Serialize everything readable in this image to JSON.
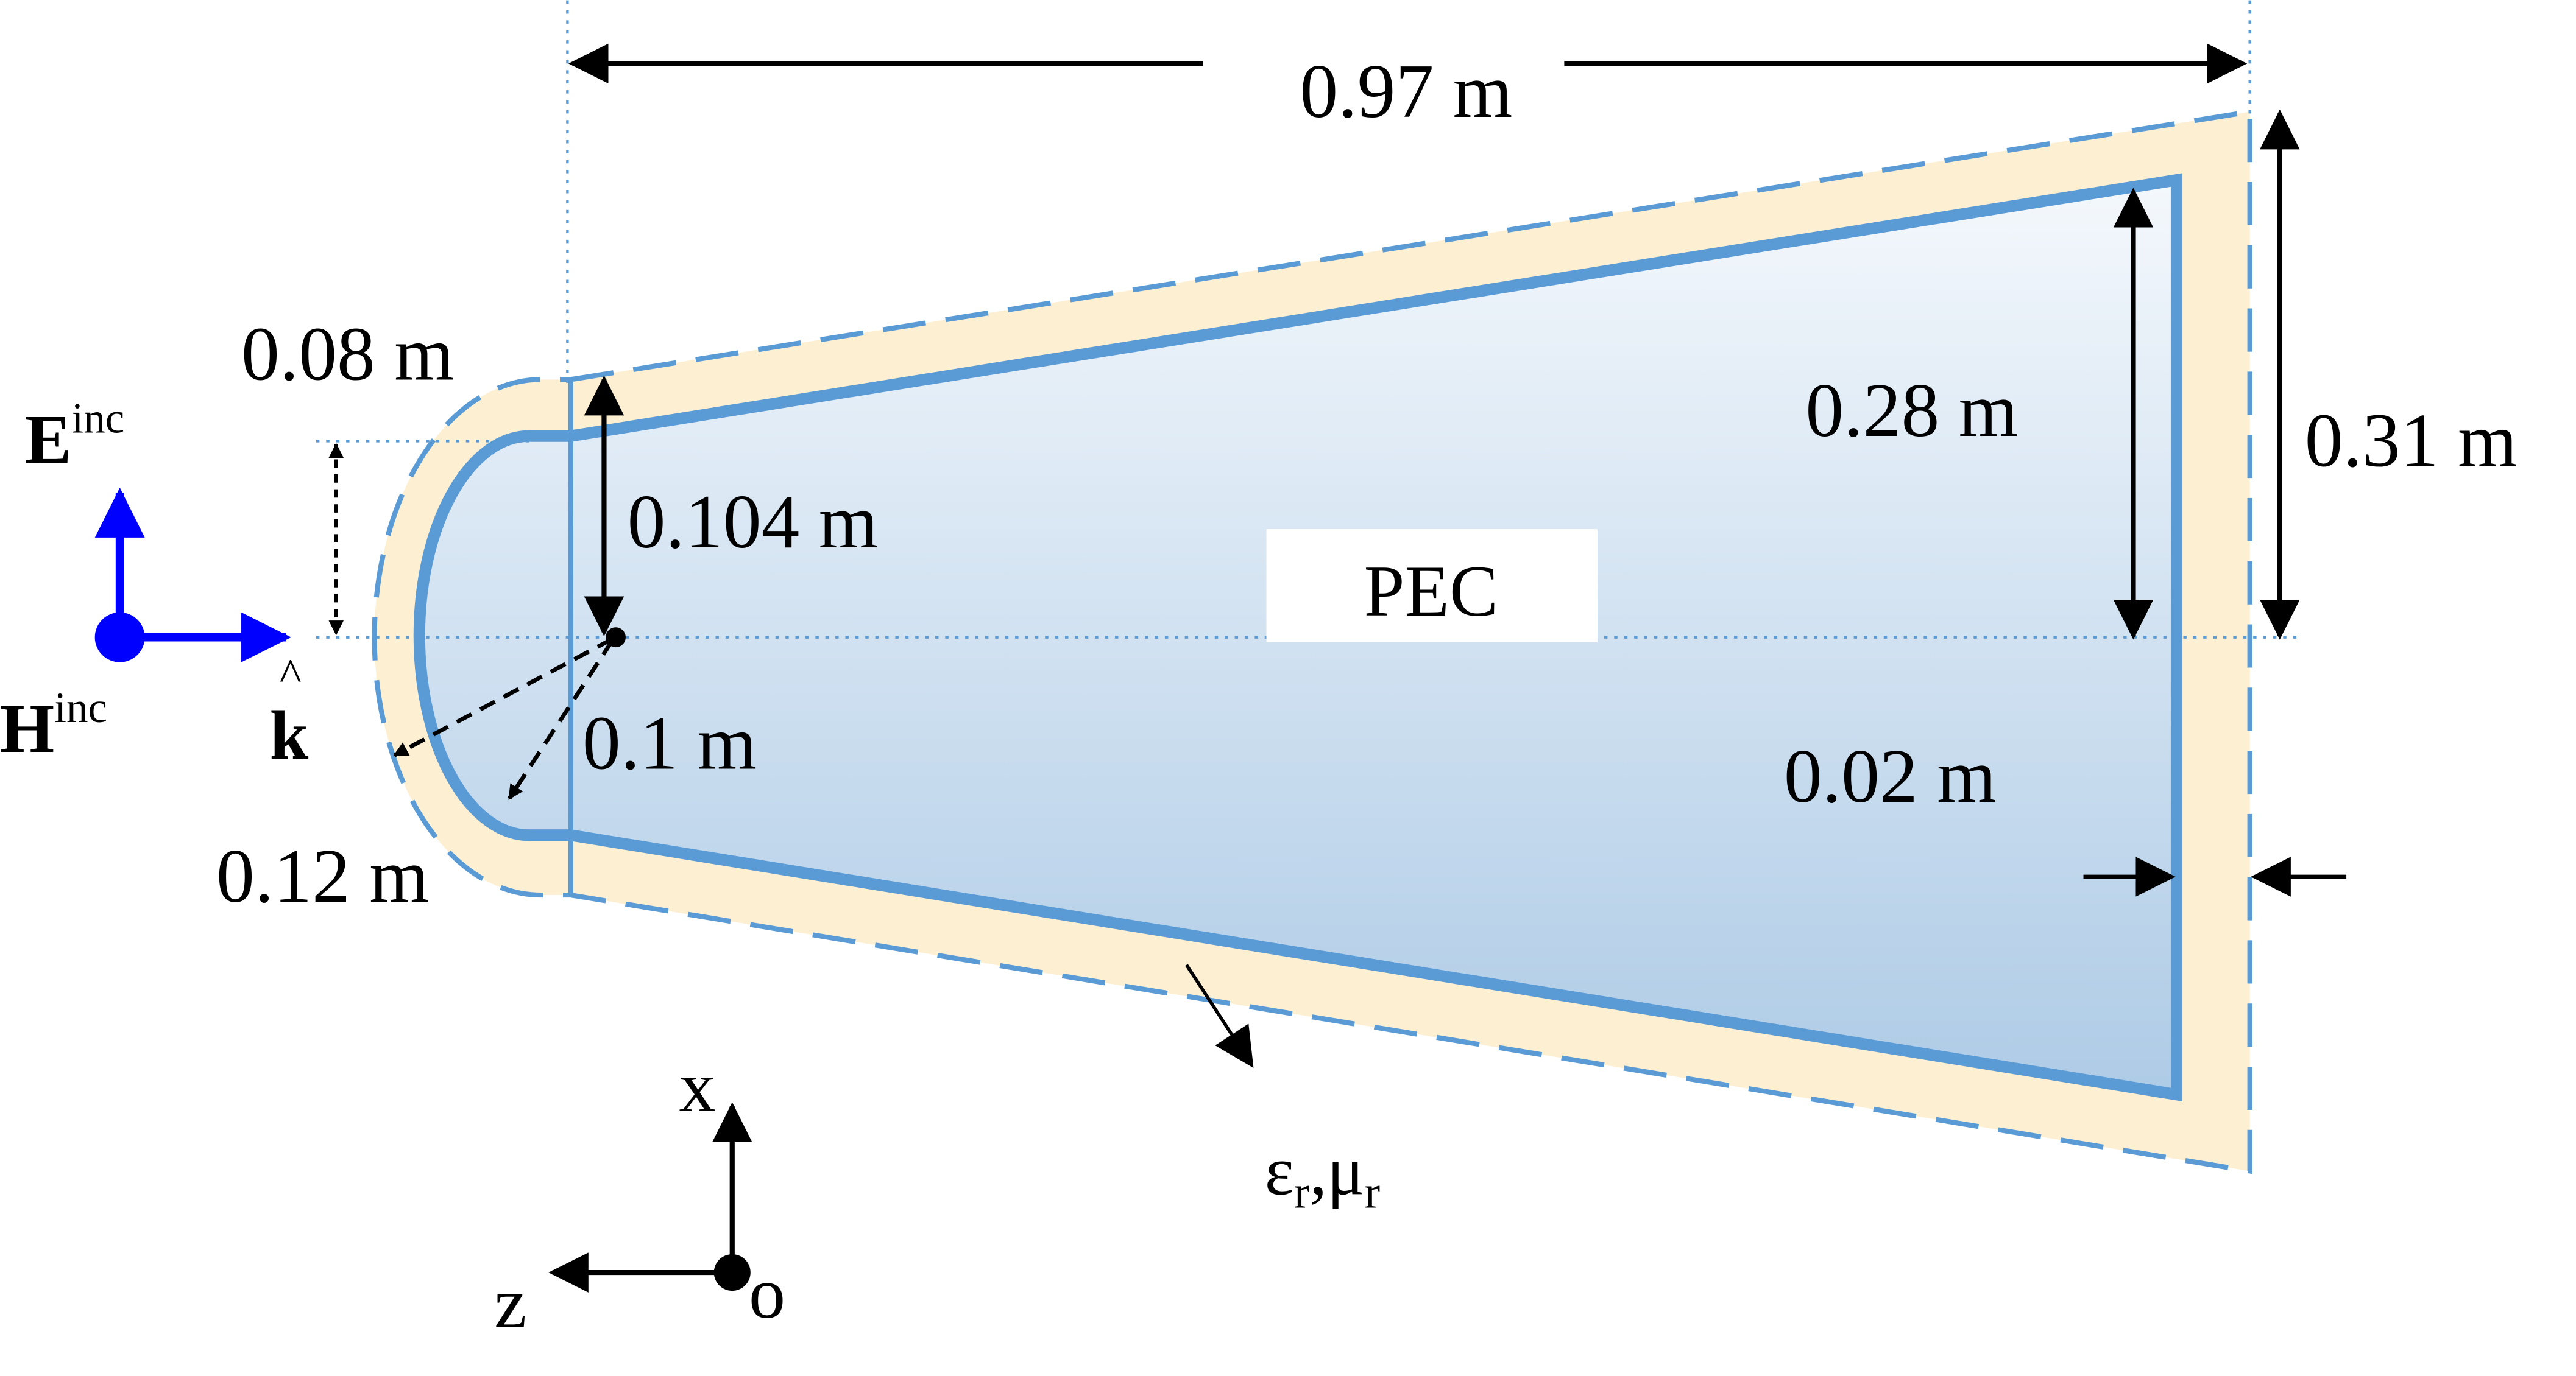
{
  "labels": {
    "overall_length": "0.97 m",
    "outer_height": "0.31 m",
    "inner_height": "0.28 m",
    "coating_thickness": "0.02 m",
    "tip_offset": "0.08 m",
    "tip_half_height": "0.104 m",
    "inner_radius": "0.1 m",
    "outer_radius": "0.12 m",
    "pec": "PEC",
    "material_eps": "ε",
    "material_eps_sub": "r",
    "material_sep": ",",
    "material_mu": "μ",
    "material_mu_sub": "r"
  },
  "incident": {
    "e_symbol": "E",
    "e_superscript": "inc",
    "h_symbol": "H",
    "h_superscript": "inc",
    "k_symbol": "k",
    "k_hat": "^"
  },
  "axes": {
    "x_label": "x",
    "z_label": "z",
    "origin_label": "o"
  },
  "colors": {
    "pec_stroke": "#5b9bd5",
    "pec_fill_top": "#f4f8fc",
    "pec_fill_bottom": "#aecbe6",
    "coating_fill": "#fdf0d2",
    "coating_stroke": "#5b9bd5",
    "incident_field": "#0000ff",
    "guide_dotted": "#5b9bd5",
    "annotation": "#000000"
  }
}
